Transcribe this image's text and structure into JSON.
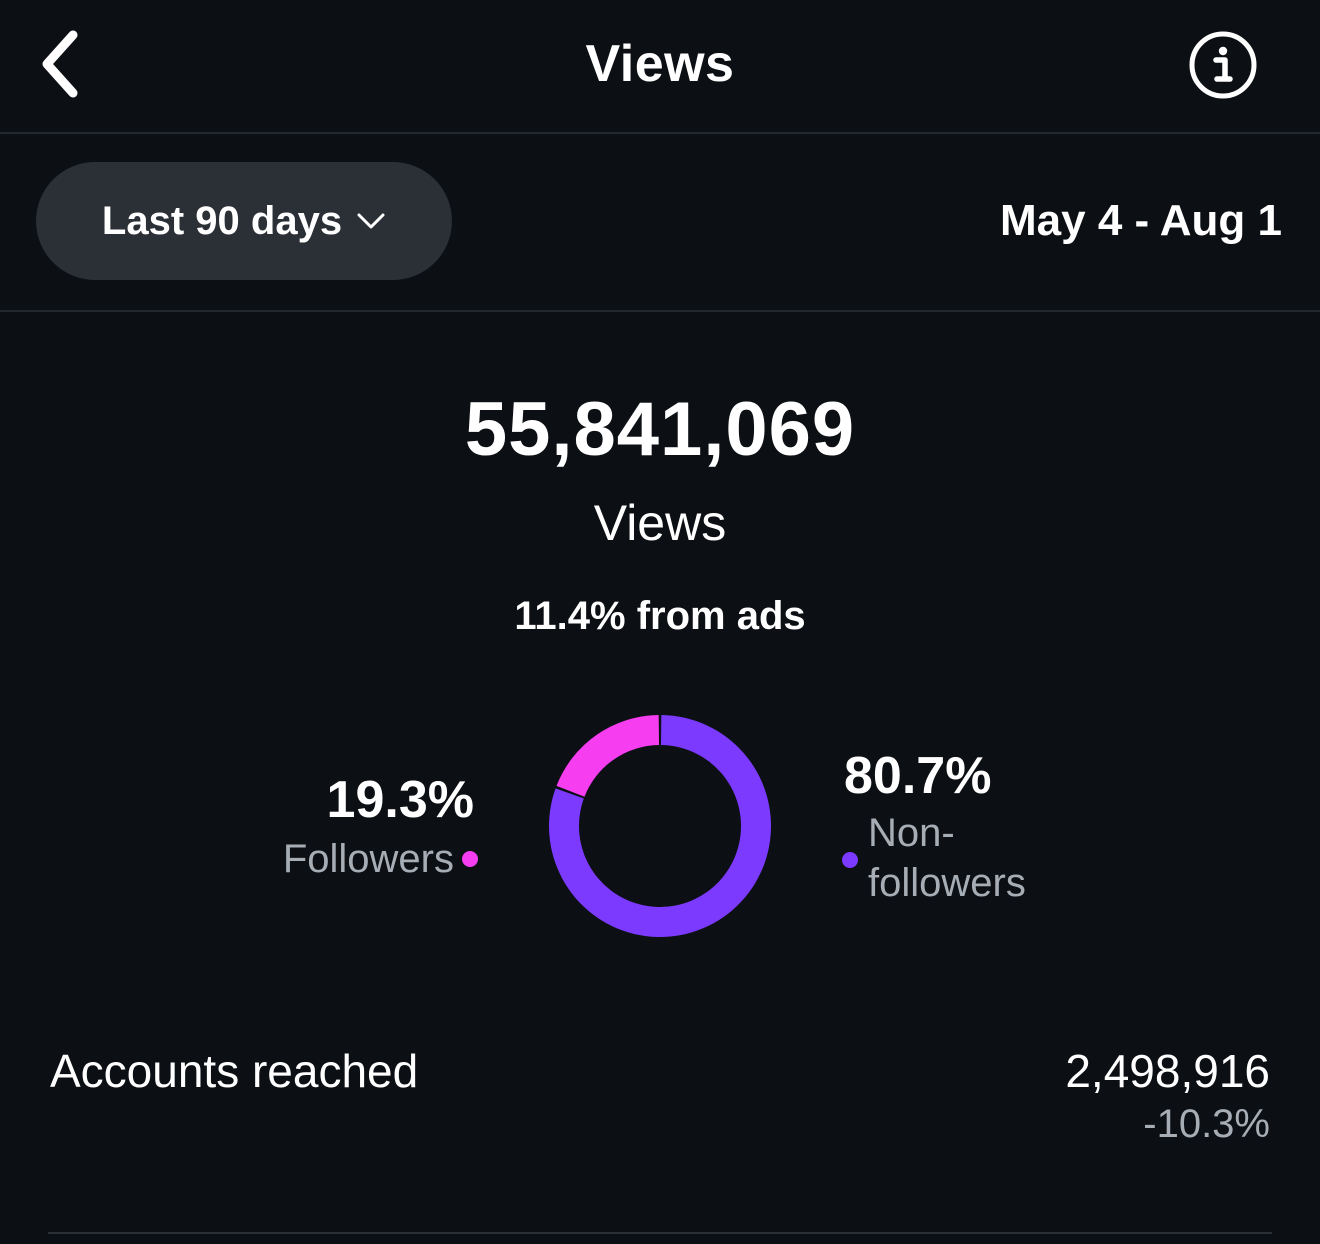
{
  "header": {
    "title": "Views",
    "back_icon": "chevron-left-icon",
    "info_icon": "info-icon"
  },
  "filter": {
    "range_label": "Last 90 days",
    "dropdown_icon": "chevron-down-icon",
    "date_range": "May 4 - Aug 1"
  },
  "stats": {
    "views_value": "55,841,069",
    "views_label": "Views",
    "ads_share": "11.4% from ads"
  },
  "breakdown": {
    "followers": {
      "percent": "19.3%",
      "label": "Followers",
      "value": 19.3,
      "color": "#f63df0"
    },
    "non_followers": {
      "percent": "80.7%",
      "label": "Non-followers",
      "value": 80.7,
      "color": "#7c3aff"
    }
  },
  "chart_data": {
    "type": "pie",
    "donut": true,
    "categories": [
      "Followers",
      "Non-followers"
    ],
    "values": [
      19.3,
      80.7
    ],
    "colors": [
      "#f63df0",
      "#7c3aff"
    ]
  },
  "accounts_reached": {
    "label": "Accounts reached",
    "value": "2,498,916",
    "change": "-10.3%"
  }
}
